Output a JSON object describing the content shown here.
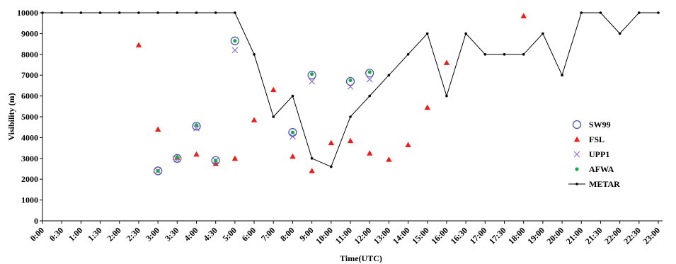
{
  "chart_data": {
    "type": "scatter",
    "xlabel": "Time(UTC)",
    "ylabel": "Visibility (m)",
    "ylim": [
      0,
      10000
    ],
    "yticks": [
      0,
      1000,
      2000,
      3000,
      4000,
      5000,
      6000,
      7000,
      8000,
      9000,
      10000
    ],
    "categories": [
      "0:00",
      "0:30",
      "1:00",
      "1:30",
      "2:00",
      "2:30",
      "3:00",
      "3:30",
      "4:00",
      "4:30",
      "5:00",
      "6:00",
      "7:00",
      "8:00",
      "9:00",
      "10:00",
      "11:00",
      "12:00",
      "13:00",
      "14:00",
      "15:00",
      "16:00",
      "16:30",
      "17:00",
      "17:30",
      "18:00",
      "19:00",
      "20:00",
      "21:00",
      "21:30",
      "22:00",
      "22:30",
      "23:00"
    ],
    "legend_position": "right",
    "grid": false,
    "series": [
      {
        "name": "SW99",
        "marker": "circle-open",
        "color": "#4a5aa8",
        "points": [
          [
            "3:00",
            2400
          ],
          [
            "3:30",
            3000
          ],
          [
            "4:00",
            4550
          ],
          [
            "4:30",
            2900
          ],
          [
            "5:00",
            8650
          ],
          [
            "8:00",
            4250
          ],
          [
            "9:00",
            7000
          ],
          [
            "11:00",
            6700
          ],
          [
            "12:00",
            7100
          ]
        ]
      },
      {
        "name": "FSL",
        "marker": "triangle",
        "color": "#ee1c1c",
        "points": [
          [
            "2:30",
            8450
          ],
          [
            "3:00",
            4400
          ],
          [
            "3:30",
            3050
          ],
          [
            "4:00",
            3200
          ],
          [
            "4:30",
            2750
          ],
          [
            "5:00",
            3000
          ],
          [
            "6:00",
            4850
          ],
          [
            "7:00",
            6300
          ],
          [
            "8:00",
            3100
          ],
          [
            "9:00",
            2400
          ],
          [
            "10:00",
            3750
          ],
          [
            "11:00",
            3850
          ],
          [
            "12:00",
            3250
          ],
          [
            "13:00",
            2950
          ],
          [
            "14:00",
            3650
          ],
          [
            "15:00",
            5450
          ],
          [
            "16:00",
            7600
          ],
          [
            "18:00",
            9850
          ]
        ]
      },
      {
        "name": "UPP1",
        "marker": "cross",
        "color": "#9a6fd0",
        "points": [
          [
            "3:00",
            2400
          ],
          [
            "3:30",
            2950
          ],
          [
            "4:00",
            4450
          ],
          [
            "4:30",
            2900
          ],
          [
            "5:00",
            8200
          ],
          [
            "8:00",
            4050
          ],
          [
            "9:00",
            6700
          ],
          [
            "11:00",
            6450
          ],
          [
            "12:00",
            6800
          ]
        ]
      },
      {
        "name": "AFWA",
        "marker": "dot",
        "color": "#1aa84a",
        "points": [
          [
            "3:00",
            2400
          ],
          [
            "3:30",
            3050
          ],
          [
            "4:00",
            4600
          ],
          [
            "4:30",
            2900
          ],
          [
            "5:00",
            8650
          ],
          [
            "8:00",
            4250
          ],
          [
            "9:00",
            7050
          ],
          [
            "11:00",
            6750
          ],
          [
            "12:00",
            7150
          ]
        ]
      },
      {
        "name": "METAR",
        "marker": "line-dot",
        "color": "#000000",
        "points": [
          [
            "0:00",
            10000
          ],
          [
            "0:30",
            10000
          ],
          [
            "1:00",
            10000
          ],
          [
            "1:30",
            10000
          ],
          [
            "2:00",
            10000
          ],
          [
            "2:30",
            10000
          ],
          [
            "3:00",
            10000
          ],
          [
            "3:30",
            10000
          ],
          [
            "4:00",
            10000
          ],
          [
            "4:30",
            10000
          ],
          [
            "5:00",
            10000
          ],
          [
            "6:00",
            8000
          ],
          [
            "7:00",
            5000
          ],
          [
            "8:00",
            6000
          ],
          [
            "9:00",
            3000
          ],
          [
            "10:00",
            2600
          ],
          [
            "11:00",
            5000
          ],
          [
            "12:00",
            6000
          ],
          [
            "13:00",
            7000
          ],
          [
            "14:00",
            8000
          ],
          [
            "15:00",
            9000
          ],
          [
            "16:00",
            6000
          ],
          [
            "16:30",
            9000
          ],
          [
            "17:00",
            8000
          ],
          [
            "17:30",
            8000
          ],
          [
            "18:00",
            8000
          ],
          [
            "19:00",
            9000
          ],
          [
            "20:00",
            7000
          ],
          [
            "21:00",
            10000
          ],
          [
            "21:30",
            10000
          ],
          [
            "22:00",
            9000
          ],
          [
            "22:30",
            10000
          ],
          [
            "23:00",
            10000
          ]
        ]
      }
    ]
  }
}
